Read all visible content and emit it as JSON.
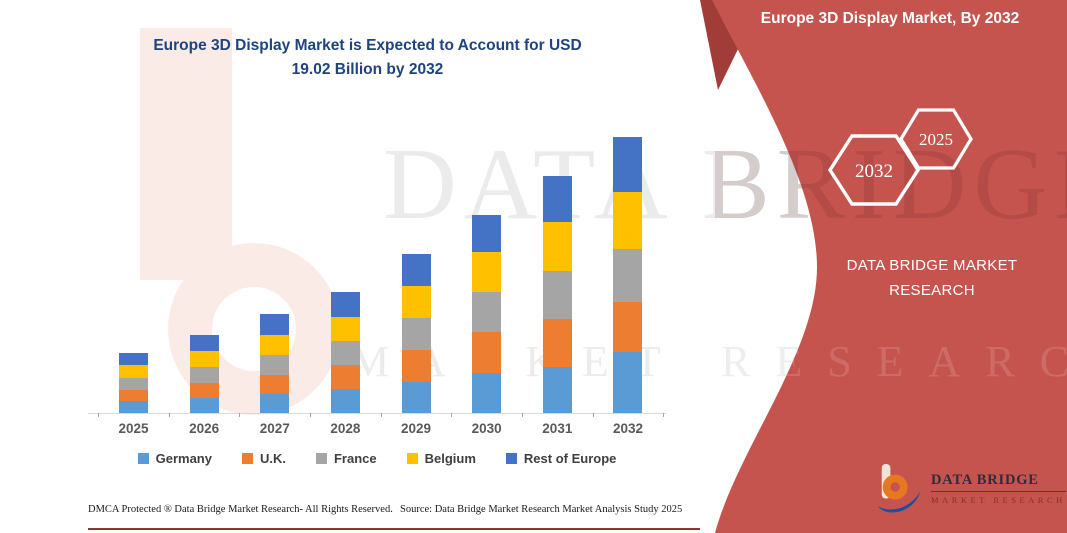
{
  "header": {
    "title_line1": "Europe 3D Display Market is Expected to Account for USD",
    "title_line2": "19.02 Billion by 2032"
  },
  "sidebar": {
    "title": "Europe 3D Display Market, By 2032",
    "hexagons": [
      {
        "label": "2032"
      },
      {
        "label": "2025"
      }
    ],
    "brand": "DATA BRIDGE MARKET RESEARCH",
    "logo": {
      "name": "DATA BRIDGE",
      "subtitle": "MARKET RESEARCH"
    },
    "accent_color": "#C5544E"
  },
  "watermark": {
    "line1": "DATA BRIDGE",
    "line2": "MARKET RESEARCH"
  },
  "footer": {
    "dmca": "DMCA Protected ® Data Bridge Market Research-  All Rights Reserved.",
    "source": "Source: Data Bridge Market Research  Market Analysis Study 2025"
  },
  "chart_data": {
    "type": "bar",
    "stacked": true,
    "title": "Europe 3D Display Market is Expected to Account for USD 19.02 Billion by 2032",
    "unit": "USD Billion",
    "total_2032": 19.02,
    "categories": [
      "2025",
      "2026",
      "2027",
      "2028",
      "2029",
      "2030",
      "2031",
      "2032"
    ],
    "series": [
      {
        "name": "Germany",
        "color": "#5B9BD5",
        "values": [
          0.8,
          1.05,
          1.32,
          1.65,
          2.17,
          2.78,
          3.19,
          4.24
        ]
      },
      {
        "name": "U.K.",
        "color": "#ED7D31",
        "values": [
          0.76,
          1.04,
          1.33,
          1.63,
          2.18,
          2.78,
          3.26,
          3.4
        ]
      },
      {
        "name": "France",
        "color": "#A5A5A5",
        "values": [
          0.84,
          1.08,
          1.36,
          1.66,
          2.19,
          2.78,
          3.33,
          3.68
        ]
      },
      {
        "name": "Belgium",
        "color": "#FFC000",
        "values": [
          0.9,
          1.12,
          1.39,
          1.68,
          2.21,
          2.78,
          3.4,
          3.89
        ]
      },
      {
        "name": "Rest of Europe",
        "color": "#4472C4",
        "values": [
          0.87,
          1.12,
          1.4,
          1.71,
          2.22,
          2.56,
          3.19,
          3.81
        ]
      }
    ],
    "legend_position": "bottom",
    "grid": false,
    "value_axis_visible": false
  }
}
